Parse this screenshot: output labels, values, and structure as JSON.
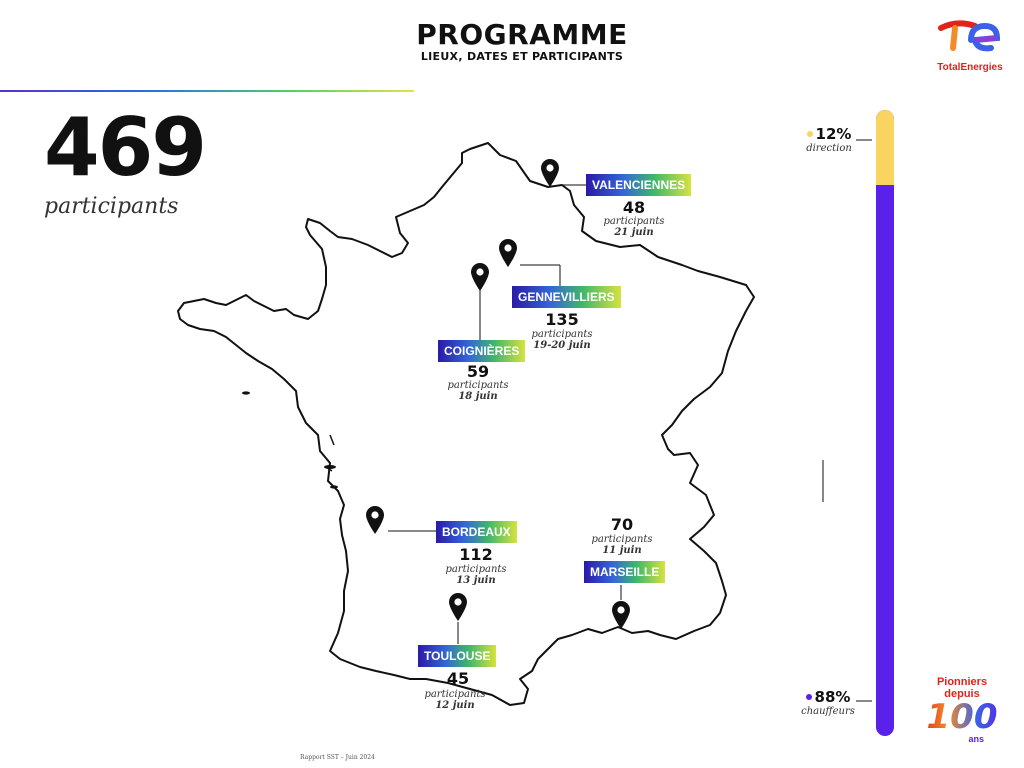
{
  "header": {
    "title": "PROGRAMME",
    "subtitle": "LIEUX, DATES ET PARTICIPANTS"
  },
  "brand": {
    "name": "TotalEnergies",
    "colors": {
      "red": "#e2231a",
      "orange": "#f28c28",
      "blue": "#3b62e6",
      "purple": "#5a21ea",
      "yellow": "#fad460"
    }
  },
  "total": {
    "value": "469",
    "label": "participants"
  },
  "sites": [
    {
      "name": "VALENCIENNES",
      "count": "48",
      "label": "participants",
      "date": "21 juin"
    },
    {
      "name": "GENNEVILLIERS",
      "count": "135",
      "label": "participants",
      "date": "19-20 juin"
    },
    {
      "name": "COIGNIÈRES",
      "count": "59",
      "label": "participants",
      "date": "18 juin"
    },
    {
      "name": "BORDEAUX",
      "count": "112",
      "label": "participants",
      "date": "13 juin"
    },
    {
      "name": "MARSEILLE",
      "count": "70",
      "label": "participants",
      "date": "11 juin"
    },
    {
      "name": "TOULOUSE",
      "count": "45",
      "label": "participants",
      "date": "12 juin"
    }
  ],
  "distribution": {
    "direction": {
      "pct": "12%",
      "label": "direction",
      "value": 12
    },
    "chauffeurs": {
      "pct": "88%",
      "label": "chauffeurs",
      "value": 88
    }
  },
  "footer": {
    "text": "Rapport SST – Juin 2024"
  },
  "anniversary": {
    "line1": "Pionniers",
    "line2": "depuis",
    "number": "100",
    "suffix": "ans"
  },
  "icons": [
    "map-pin-icon",
    "totalenergies-logo",
    "anniversary-logo"
  ]
}
